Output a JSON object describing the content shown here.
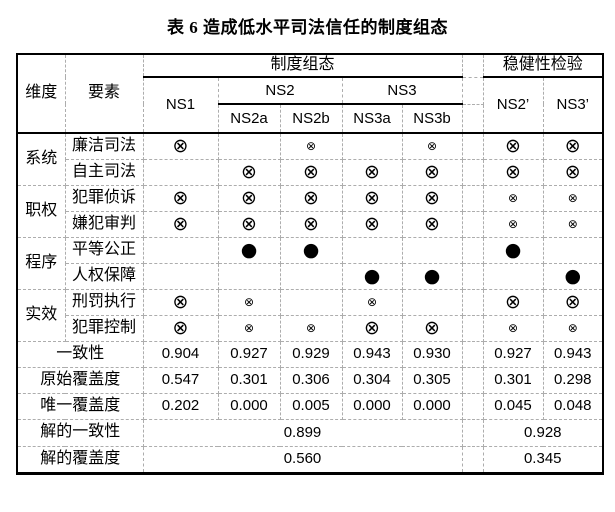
{
  "title": "表 6 造成低水平司法信任的制度组态",
  "colors": {
    "border_solid": "#000000",
    "border_dashed": "#adadad",
    "text": "#000000",
    "background": "#ffffff"
  },
  "table": {
    "header": {
      "dimension": "维度",
      "element": "要素",
      "config_group": "制度组态",
      "robust_group": "稳健性检验",
      "ns1": "NS1",
      "ns2": "NS2",
      "ns3": "NS3",
      "sub": [
        "NS2a",
        "NS2b",
        "NS3a",
        "NS3b"
      ],
      "robust_cols": [
        "NS2’",
        "NS3’"
      ]
    },
    "symbols": {
      "X": {
        "glyph": "⊗",
        "meaning": "core-condition-absent",
        "class": "sym-big-absent"
      },
      "x": {
        "glyph": "⊗",
        "meaning": "peripheral-condition-absent",
        "class": "sym-small-absent"
      },
      "O": {
        "glyph": "●",
        "meaning": "core-condition-present",
        "class": "sym-present"
      }
    },
    "dimension_groups": [
      {
        "dimension": "系统",
        "rows": [
          {
            "element": "廉洁司法",
            "cells": [
              "X",
              "",
              "x",
              "",
              "x",
              "X",
              "X"
            ]
          },
          {
            "element": "自主司法",
            "cells": [
              "",
              "X",
              "X",
              "X",
              "X",
              "X",
              "X"
            ]
          }
        ]
      },
      {
        "dimension": "职权",
        "rows": [
          {
            "element": "犯罪侦诉",
            "cells": [
              "X",
              "X",
              "X",
              "X",
              "X",
              "x",
              "x"
            ]
          },
          {
            "element": "嫌犯审判",
            "cells": [
              "X",
              "X",
              "X",
              "X",
              "X",
              "x",
              "x"
            ]
          }
        ]
      },
      {
        "dimension": "程序",
        "rows": [
          {
            "element": "平等公正",
            "cells": [
              "",
              "O",
              "O",
              "",
              "",
              "O",
              ""
            ]
          },
          {
            "element": "人权保障",
            "cells": [
              "",
              "",
              "",
              "O",
              "O",
              "",
              "O"
            ]
          }
        ]
      },
      {
        "dimension": "实效",
        "rows": [
          {
            "element": "刑罚执行",
            "cells": [
              "X",
              "x",
              "",
              "x",
              "",
              "X",
              "X"
            ]
          },
          {
            "element": "犯罪控制",
            "cells": [
              "X",
              "x",
              "x",
              "X",
              "X",
              "x",
              "x"
            ]
          }
        ]
      }
    ],
    "stat_rows": [
      {
        "label": "一致性",
        "values": [
          "0.904",
          "0.927",
          "0.929",
          "0.943",
          "0.930",
          "0.927",
          "0.943"
        ]
      },
      {
        "label": "原始覆盖度",
        "values": [
          "0.547",
          "0.301",
          "0.306",
          "0.304",
          "0.305",
          "0.301",
          "0.298"
        ]
      },
      {
        "label": "唯一覆盖度",
        "values": [
          "0.202",
          "0.000",
          "0.005",
          "0.000",
          "0.000",
          "0.045",
          "0.048"
        ]
      }
    ],
    "solution_rows": [
      {
        "label": "解的一致性",
        "config_value": "0.899",
        "robust_value": "0.928"
      },
      {
        "label": "解的覆盖度",
        "config_value": "0.560",
        "robust_value": "0.345"
      }
    ]
  }
}
